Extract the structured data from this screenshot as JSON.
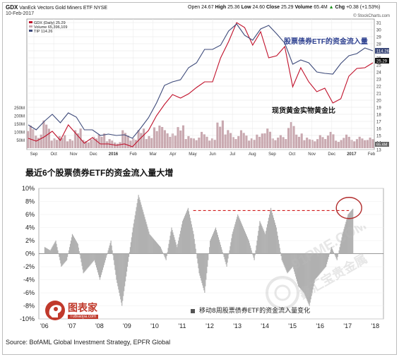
{
  "top_chart": {
    "ticker": "GDX",
    "name": "VanEck Vectors Gold Miners ETF",
    "exchange": "NYSE",
    "date": "10-Feb-2017",
    "open_label": "Open",
    "open": "24.67",
    "high_label": "High",
    "high": "25.36",
    "low_label": "Low",
    "low": "24.60",
    "close_label": "Close",
    "close": "25.29",
    "volume_label": "Volume",
    "volume": "65.4M",
    "chg_label": "Chg",
    "chg": "+0.38 (+1.53%)",
    "chg_arrow": "▲",
    "site": "© StockCharts.com",
    "legend": [
      "GDX (Daily) 25.29",
      "Volume 65,396,109",
      "TIP 114.26"
    ],
    "annotation_flow": "股票债券ETF的资金流入量",
    "annotation_gold": "现货黄金实物黄金比",
    "tip_last": "114.26",
    "gdx_last": "25.29",
    "vol_last": "65.4M"
  },
  "mid_title": "最近6个股票债券ETF的资金流入量大增",
  "bottom_legend": "移动8周股票债券ETF的资金流入量变化",
  "logo": {
    "name": "图表家",
    "sub": "Tubiaojia.com"
  },
  "watermark": {
    "domain": "91PME.COM",
    "cn": "鑫汇宝贵金属"
  },
  "source": "Source: BofAML Global Investment Strategy, EPFR Global",
  "colors": {
    "gdx": "#c0102a",
    "tip": "#3d4a7a",
    "volume": "#c9a9b0",
    "bars": "#b0b0b0",
    "dashed": "#d01818",
    "accent_blue": "#2b3e8f"
  },
  "chart_data": [
    {
      "type": "line",
      "x_ticks": [
        "Sep",
        "Oct",
        "Nov",
        "Dec",
        "2016",
        "Feb",
        "Mar",
        "Apr",
        "May",
        "Jun",
        "Jul",
        "Aug",
        "Sep",
        "Oct",
        "Nov",
        "Dec",
        "2017",
        "Feb"
      ],
      "y_ticks_right": [
        13,
        14,
        15,
        16,
        17,
        18,
        19,
        20,
        21,
        22,
        23,
        24,
        25,
        26,
        27,
        28,
        29,
        30,
        31
      ],
      "volume_ticks_left": [
        "250M",
        "200M",
        "150M",
        "100M",
        "50M"
      ],
      "ylim": [
        13,
        31.5
      ],
      "series": [
        {
          "name": "GDX (Daily) 25.29",
          "values": [
            14.6,
            14.2,
            14.8,
            15.6,
            14.3,
            16.5,
            15.2,
            13.9,
            14.7,
            13.8,
            13.8,
            13.6,
            13.8,
            13.4,
            14.6,
            15.7,
            17.8,
            19.4,
            20.8,
            20.3,
            20.9,
            21.8,
            22.6,
            22.6,
            26.0,
            28.3,
            31.0,
            30.3,
            27.8,
            29.7,
            26.0,
            26.3,
            27.6,
            21.9,
            24.6,
            22.6,
            21.2,
            21.7,
            19.6,
            20.2,
            23.4,
            24.5,
            24.6,
            25.3
          ]
        },
        {
          "name": "TIP 114.26",
          "values": [
            16.5,
            15.8,
            17.0,
            18.0,
            16.8,
            18.2,
            17.6,
            15.8,
            15.8,
            15.0,
            15.2,
            15.0,
            15.1,
            14.6,
            16.0,
            17.5,
            19.6,
            22.1,
            22.6,
            22.9,
            24.6,
            25.3,
            27.2,
            27.2,
            27.8,
            29.8,
            30.8,
            29.2,
            28.5,
            30.1,
            30.6,
            29.4,
            28.1,
            25.1,
            25.7,
            25.3,
            24.0,
            23.8,
            23.7,
            25.2,
            26.3,
            26.6,
            27.4,
            27.0
          ]
        }
      ],
      "volume": [
        150,
        90,
        170,
        60,
        80,
        60,
        130,
        50,
        70,
        90,
        60,
        40,
        110,
        60,
        120,
        80,
        150,
        130,
        90,
        140,
        80,
        70,
        100,
        60,
        170,
        120,
        80,
        110,
        60,
        90,
        130,
        70,
        80,
        160,
        90,
        70,
        60,
        80,
        100,
        50,
        90,
        60,
        70,
        65
      ]
    },
    {
      "type": "bar",
      "x_ticks": [
        "'06",
        "'07",
        "'08",
        "'09",
        "'10",
        "'11",
        "'12",
        "'13",
        "'14",
        "'15",
        "'16",
        "'17",
        "'18"
      ],
      "y_ticks": [
        "10%",
        "8%",
        "6%",
        "4%",
        "2%",
        "0%",
        "-2%",
        "-4%",
        "-6%",
        "-8%",
        "-10%"
      ],
      "ylim": [
        -10,
        10
      ],
      "series": [
        {
          "name": "移动8周股票债券ETF的资金流入量变化",
          "x": [
            2006,
            2006.2,
            2006.4,
            2006.6,
            2006.8,
            2007,
            2007.2,
            2007.4,
            2007.6,
            2007.8,
            2008,
            2008.2,
            2008.4,
            2008.6,
            2008.8,
            2009,
            2009.2,
            2009.4,
            2009.6,
            2009.8,
            2010,
            2010.2,
            2010.4,
            2010.6,
            2010.8,
            2011,
            2011.2,
            2011.4,
            2011.6,
            2011.8,
            2012,
            2012.2,
            2012.4,
            2012.6,
            2012.8,
            2013,
            2013.2,
            2013.4,
            2013.6,
            2013.8,
            2014,
            2014.2,
            2014.4,
            2014.6,
            2014.8,
            2015,
            2015.2,
            2015.4,
            2015.6,
            2015.8,
            2016,
            2016.2,
            2016.4,
            2016.6,
            2016.8,
            2017,
            2017.2
          ],
          "values": [
            1,
            0.5,
            2,
            -2,
            -1,
            3,
            1.5,
            -3,
            -2,
            -1,
            -4,
            -1,
            2,
            -4,
            -8,
            -2,
            4,
            9,
            6,
            3,
            2,
            1,
            -1,
            4,
            1,
            5,
            7,
            3,
            -3,
            -6,
            2,
            4,
            1,
            -2,
            3,
            6,
            4,
            2,
            -1,
            5,
            3,
            7,
            4,
            -1,
            -3,
            -2,
            -5,
            -6,
            -8,
            -4,
            -3,
            -2,
            1,
            -1,
            3,
            6,
            7
          ]
        }
      ],
      "annotations": {
        "dashed_level": 6.6
      }
    }
  ]
}
